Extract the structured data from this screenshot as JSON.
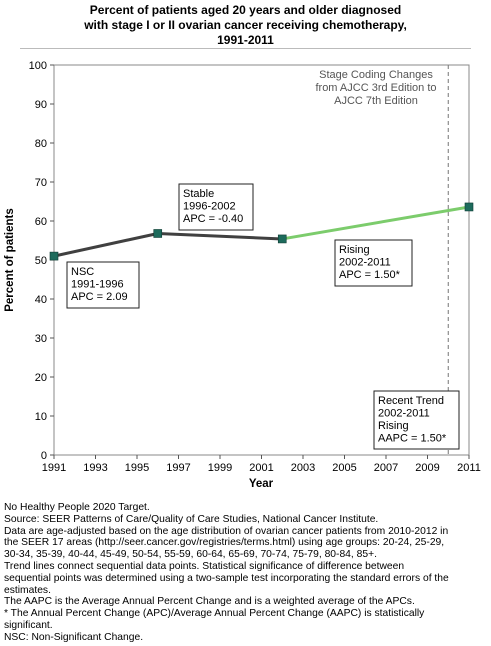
{
  "title_lines": [
    "Percent of patients aged 20 years and older diagnosed",
    "with stage I or II ovarian cancer receiving chemotherapy,",
    "1991-2011"
  ],
  "chart_data": {
    "type": "line",
    "xlabel": "Year",
    "ylabel": "Percent of patients",
    "xlim": [
      1991,
      2011
    ],
    "ylim": [
      0,
      100
    ],
    "x_ticks": [
      "1991",
      "1993",
      "1995",
      "1997",
      "1999",
      "2001",
      "2003",
      "2005",
      "2007",
      "2009",
      "2011"
    ],
    "y_ticks": [
      "0",
      "10",
      "20",
      "30",
      "40",
      "50",
      "60",
      "70",
      "80",
      "90",
      "100"
    ],
    "points": [
      {
        "x": 1991,
        "y": 51.0
      },
      {
        "x": 1996,
        "y": 56.8
      },
      {
        "x": 2002,
        "y": 55.4
      },
      {
        "x": 2011,
        "y": 63.6
      }
    ],
    "series": [
      {
        "segment": "1991-1996",
        "color": "#404040",
        "x": [
          1991,
          1996
        ],
        "y": [
          51.0,
          56.8
        ]
      },
      {
        "segment": "1996-2002",
        "color": "#404040",
        "x": [
          1996,
          2002
        ],
        "y": [
          56.8,
          55.4
        ]
      },
      {
        "segment": "2002-2011",
        "color": "#7ccc6c",
        "x": [
          2002,
          2011
        ],
        "y": [
          55.4,
          63.6
        ]
      }
    ],
    "reference_line": {
      "x": 2010,
      "style": "dashed",
      "label_lines": [
        "Stage Coding Changes",
        "from AJCC 3rd Edition to",
        "AJCC 7th Edition"
      ]
    },
    "annotations": [
      {
        "id": "nsc",
        "lines": [
          "NSC",
          "1991-1996",
          "APC =  2.09"
        ]
      },
      {
        "id": "stable",
        "lines": [
          "Stable",
          "1996-2002",
          "APC = -0.40"
        ]
      },
      {
        "id": "rising",
        "lines": [
          "Rising",
          "2002-2011",
          "APC =  1.50*"
        ]
      },
      {
        "id": "recent",
        "lines": [
          "Recent Trend",
          "2002-2011",
          "Rising",
          "AAPC =  1.50*"
        ]
      }
    ],
    "grid": false,
    "marker_color": "#1d6b5c"
  },
  "footer_lines": [
    "No Healthy People 2020 Target.",
    "Source: SEER Patterns of Care/Quality of Care Studies, National Cancer Institute.",
    "Data are age-adjusted based on the age distribution of ovarian cancer patients from 2010-2012 in",
    "the SEER 17 areas (http://seer.cancer.gov/registries/terms.html) using age groups: 20-24, 25-29,",
    "30-34, 35-39, 40-44, 45-49, 50-54, 55-59, 60-64, 65-69, 70-74, 75-79, 80-84, 85+.",
    "Trend lines connect sequential data points. Statistical significance of difference between",
    "sequential points was determined using a two-sample test incorporating the standard errors of the",
    "estimates.",
    "The AAPC is the Average Annual Percent Change and is a weighted average of the APCs.",
    "* The Annual Percent Change (APC)/Average Annual Percent Change (AAPC) is statistically",
    "significant.",
    "NSC: Non-Significant Change."
  ]
}
